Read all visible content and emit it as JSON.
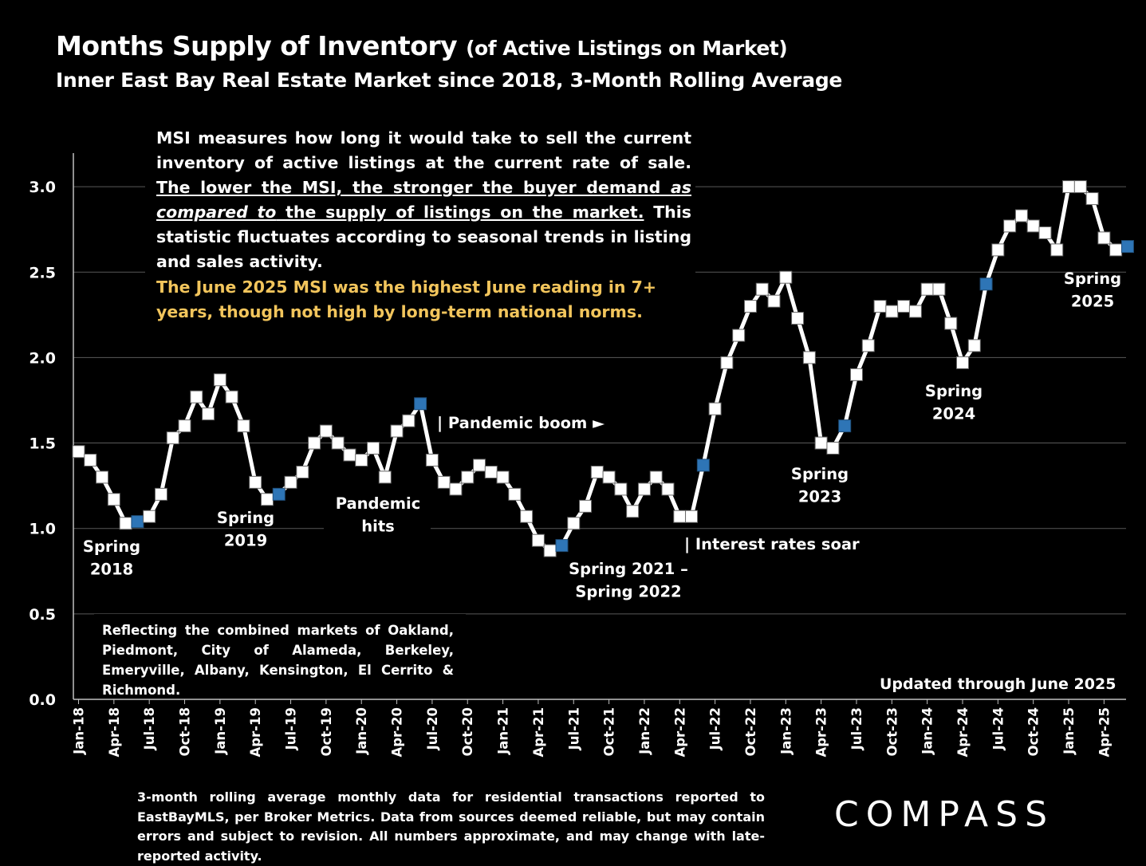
{
  "header": {
    "title_main": "Months Supply of Inventory",
    "title_paren": "(of Active Listings on Market)",
    "subtitle": "Inner East Bay Real Estate Market since 2018, 3-Month Rolling Average"
  },
  "description": {
    "p1_a": "MSI measures how long it would take to sell the current inventory of active listings at the current rate of sale. ",
    "p1_u1": "The lower the MSI, the stronger the buyer demand ",
    "p1_em": "as compared to",
    "p1_u2": " the supply of listings on the market.",
    "p1_b": " This statistic fluctuates according to seasonal trends in listing and sales activity.",
    "p2": "The June 2025 MSI was the highest June reading in 7+ years, though not high by long-term national norms."
  },
  "markets_note": "Reflecting the combined markets of Oakland, Piedmont, City of Alameda, Berkeley, Emeryville, Albany, Kensington, El Cerrito & Richmond.",
  "updated": "Updated through June 2025",
  "footnote": "3-month rolling average monthly data for residential transactions reported to EastBayMLS, per Broker Metrics. Data from sources deemed reliable, but may contain errors and subject to revision. All numbers approximate, and may change with late-reported activity.",
  "logo": "COMPASS",
  "colors": {
    "background": "#000000",
    "line": "#ffffff",
    "marker": "#ffffff",
    "highlight_marker": "#2e75b6",
    "accent_text": "#f2c55c"
  },
  "chart_data": {
    "type": "line",
    "ylim": [
      0,
      3.2
    ],
    "yticks": [
      "0.0",
      "0.5",
      "1.0",
      "1.5",
      "2.0",
      "2.5",
      "3.0"
    ],
    "xtick_labels": [
      "Jan-18",
      "Apr-18",
      "Jul-18",
      "Oct-18",
      "Jan-19",
      "Apr-19",
      "Jul-19",
      "Oct-19",
      "Jan-20",
      "Apr-20",
      "Jul-20",
      "Oct-20",
      "Jan-21",
      "Apr-21",
      "Jul-21",
      "Oct-21",
      "Jan-22",
      "Apr-22",
      "Jul-22",
      "Oct-22",
      "Jan-23",
      "Apr-23",
      "Jul-23",
      "Oct-23",
      "Jan-24",
      "Apr-24",
      "Jul-24",
      "Oct-24",
      "Jan-25",
      "Apr-25"
    ],
    "values": [
      1.45,
      1.4,
      1.3,
      1.17,
      1.03,
      1.04,
      1.07,
      1.2,
      1.53,
      1.6,
      1.77,
      1.67,
      1.87,
      1.77,
      1.6,
      1.27,
      1.17,
      1.2,
      1.27,
      1.33,
      1.5,
      1.57,
      1.5,
      1.43,
      1.4,
      1.47,
      1.3,
      1.57,
      1.63,
      1.73,
      1.4,
      1.27,
      1.23,
      1.3,
      1.37,
      1.33,
      1.3,
      1.2,
      1.07,
      0.93,
      0.87,
      0.9,
      1.03,
      1.13,
      1.33,
      1.3,
      1.23,
      1.1,
      1.23,
      1.3,
      1.23,
      1.07,
      1.07,
      1.37,
      1.7,
      1.97,
      2.13,
      2.3,
      2.4,
      2.33,
      2.47,
      2.23,
      2.0,
      1.5,
      1.47,
      1.6,
      1.9,
      2.07,
      2.3,
      2.27,
      2.3,
      2.27,
      2.4,
      2.4,
      2.2,
      1.97,
      2.07,
      2.43,
      2.63,
      2.77,
      2.83,
      2.77,
      2.73,
      2.63,
      3.0,
      3.0,
      2.93,
      2.7,
      2.63,
      2.65
    ],
    "highlight_indices": [
      5,
      17,
      29,
      41,
      53,
      65,
      77,
      89
    ],
    "annotations": [
      {
        "id": "spring2018",
        "lines": [
          "Spring",
          "2018"
        ]
      },
      {
        "id": "spring2019",
        "lines": [
          "Spring",
          "2019"
        ]
      },
      {
        "id": "pandemic-hits",
        "lines": [
          "Pandemic",
          "hits"
        ]
      },
      {
        "id": "pandemic-boom",
        "lines": [
          "| Pandemic boom ►"
        ]
      },
      {
        "id": "spring2021",
        "lines": [
          "Spring 2021 –",
          "Spring 2022"
        ]
      },
      {
        "id": "interest-rates",
        "lines": [
          "| Interest rates soar"
        ]
      },
      {
        "id": "spring2023",
        "lines": [
          "Spring",
          "2023"
        ]
      },
      {
        "id": "spring2024",
        "lines": [
          "Spring",
          "2024"
        ]
      },
      {
        "id": "spring2025",
        "lines": [
          "Spring",
          "2025"
        ]
      }
    ]
  }
}
